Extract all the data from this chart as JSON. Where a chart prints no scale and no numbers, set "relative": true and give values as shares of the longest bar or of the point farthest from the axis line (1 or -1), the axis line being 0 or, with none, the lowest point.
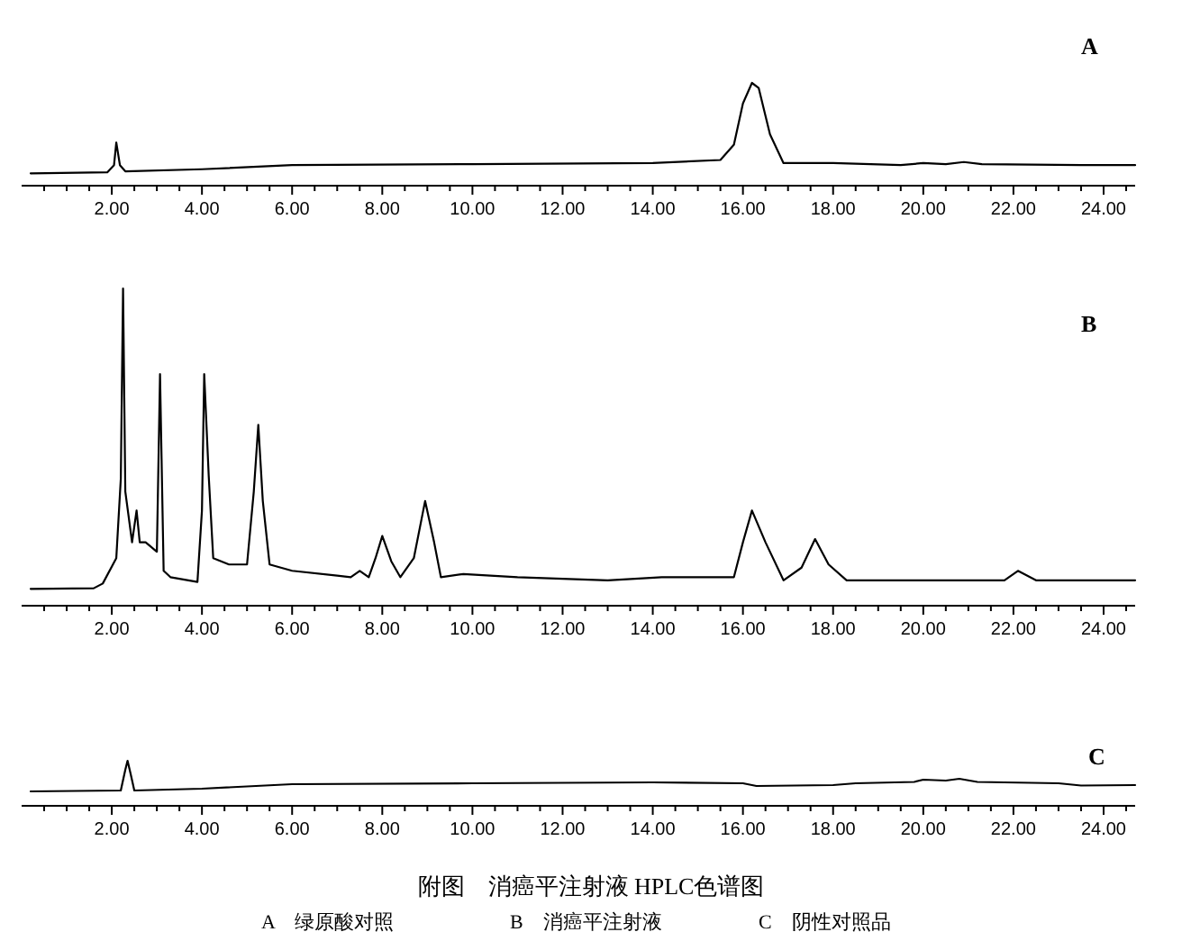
{
  "chart_data": [
    {
      "type": "line",
      "relative": true,
      "annotations": [
        "A"
      ],
      "xlim": [
        0,
        24.7
      ],
      "xticks": [
        {
          "value": 0.5,
          "label": null
        },
        {
          "value": 1,
          "label": null
        },
        {
          "value": 1.5,
          "label": null
        },
        {
          "value": 2,
          "label": "2.00"
        },
        {
          "value": 2.5,
          "label": null
        },
        {
          "value": 3,
          "label": null
        },
        {
          "value": 3.5,
          "label": null
        },
        {
          "value": 4,
          "label": "4.00"
        },
        {
          "value": 4.5,
          "label": null
        },
        {
          "value": 5,
          "label": null
        },
        {
          "value": 5.5,
          "label": null
        },
        {
          "value": 6,
          "label": "6.00"
        },
        {
          "value": 6.5,
          "label": null
        },
        {
          "value": 7,
          "label": null
        },
        {
          "value": 7.5,
          "label": null
        },
        {
          "value": 8,
          "label": "8.00"
        },
        {
          "value": 8.5,
          "label": null
        },
        {
          "value": 9,
          "label": null
        },
        {
          "value": 9.5,
          "label": null
        },
        {
          "value": 10,
          "label": "10.00"
        },
        {
          "value": 10.5,
          "label": null
        },
        {
          "value": 11,
          "label": null
        },
        {
          "value": 11.5,
          "label": null
        },
        {
          "value": 12,
          "label": "12.00"
        },
        {
          "value": 12.5,
          "label": null
        },
        {
          "value": 13,
          "label": null
        },
        {
          "value": 13.5,
          "label": null
        },
        {
          "value": 14,
          "label": "14.00"
        },
        {
          "value": 14.5,
          "label": null
        },
        {
          "value": 15,
          "label": null
        },
        {
          "value": 15.5,
          "label": null
        },
        {
          "value": 16,
          "label": "16.00"
        },
        {
          "value": 16.5,
          "label": null
        },
        {
          "value": 17,
          "label": null
        },
        {
          "value": 17.5,
          "label": null
        },
        {
          "value": 18,
          "label": "18.00"
        },
        {
          "value": 18.5,
          "label": null
        },
        {
          "value": 19,
          "label": null
        },
        {
          "value": 19.5,
          "label": null
        },
        {
          "value": 20,
          "label": "20.00"
        },
        {
          "value": 20.5,
          "label": null
        },
        {
          "value": 21,
          "label": null
        },
        {
          "value": 21.5,
          "label": null
        },
        {
          "value": 22,
          "label": "22.00"
        },
        {
          "value": 22.5,
          "label": null
        },
        {
          "value": 23,
          "label": null
        },
        {
          "value": 23.5,
          "label": null
        },
        {
          "value": 24,
          "label": "24.00"
        },
        {
          "value": 24.5,
          "label": null
        }
      ],
      "series": [
        {
          "color": "#000000",
          "x": [
            0.2,
            1.9,
            2.05,
            2.1,
            2.18,
            2.3,
            4,
            6,
            10,
            14,
            15.5,
            15.8,
            16.0,
            16.2,
            16.35,
            16.6,
            16.9,
            18,
            19.5,
            20,
            20.5,
            20.9,
            21.3,
            23.5,
            24.7
          ],
          "values": [
            0.12,
            0.13,
            0.2,
            0.42,
            0.2,
            0.14,
            0.16,
            0.2,
            0.21,
            0.22,
            0.25,
            0.4,
            0.8,
            1.0,
            0.95,
            0.5,
            0.22,
            0.22,
            0.2,
            0.22,
            0.21,
            0.23,
            0.21,
            0.2,
            0.2
          ]
        }
      ]
    },
    {
      "type": "line",
      "relative": true,
      "annotations": [
        "B"
      ],
      "xlim": [
        0,
        24.7
      ],
      "xticks": [
        {
          "value": 0.5,
          "label": null
        },
        {
          "value": 1,
          "label": null
        },
        {
          "value": 1.5,
          "label": null
        },
        {
          "value": 2,
          "label": "2.00"
        },
        {
          "value": 2.5,
          "label": null
        },
        {
          "value": 3,
          "label": null
        },
        {
          "value": 3.5,
          "label": null
        },
        {
          "value": 4,
          "label": "4.00"
        },
        {
          "value": 4.5,
          "label": null
        },
        {
          "value": 5,
          "label": null
        },
        {
          "value": 5.5,
          "label": null
        },
        {
          "value": 6,
          "label": "6.00"
        },
        {
          "value": 6.5,
          "label": null
        },
        {
          "value": 7,
          "label": null
        },
        {
          "value": 7.5,
          "label": null
        },
        {
          "value": 8,
          "label": "8.00"
        },
        {
          "value": 8.5,
          "label": null
        },
        {
          "value": 9,
          "label": null
        },
        {
          "value": 9.5,
          "label": null
        },
        {
          "value": 10,
          "label": "10.00"
        },
        {
          "value": 10.5,
          "label": null
        },
        {
          "value": 11,
          "label": null
        },
        {
          "value": 11.5,
          "label": null
        },
        {
          "value": 12,
          "label": "12.00"
        },
        {
          "value": 12.5,
          "label": null
        },
        {
          "value": 13,
          "label": null
        },
        {
          "value": 13.5,
          "label": null
        },
        {
          "value": 14,
          "label": "14.00"
        },
        {
          "value": 14.5,
          "label": null
        },
        {
          "value": 15,
          "label": null
        },
        {
          "value": 15.5,
          "label": null
        },
        {
          "value": 16,
          "label": "16.00"
        },
        {
          "value": 16.5,
          "label": null
        },
        {
          "value": 17,
          "label": null
        },
        {
          "value": 17.5,
          "label": null
        },
        {
          "value": 18,
          "label": "18.00"
        },
        {
          "value": 18.5,
          "label": null
        },
        {
          "value": 19,
          "label": null
        },
        {
          "value": 19.5,
          "label": null
        },
        {
          "value": 20,
          "label": "20.00"
        },
        {
          "value": 20.5,
          "label": null
        },
        {
          "value": 21,
          "label": null
        },
        {
          "value": 21.5,
          "label": null
        },
        {
          "value": 22,
          "label": "22.00"
        },
        {
          "value": 22.5,
          "label": null
        },
        {
          "value": 23,
          "label": null
        },
        {
          "value": 23.5,
          "label": null
        },
        {
          "value": 24,
          "label": "24.00"
        },
        {
          "value": 24.5,
          "label": null
        }
      ],
      "series": [
        {
          "color": "#000000",
          "x": [
            0.2,
            1.6,
            1.8,
            2.1,
            2.2,
            2.25,
            2.3,
            2.45,
            2.55,
            2.62,
            2.75,
            3.0,
            3.07,
            3.15,
            3.3,
            3.9,
            4.0,
            4.05,
            4.15,
            4.25,
            4.6,
            5.0,
            5.15,
            5.25,
            5.35,
            5.5,
            6.0,
            7.0,
            7.3,
            7.5,
            7.7,
            7.85,
            8.0,
            8.2,
            8.4,
            8.7,
            8.95,
            9.15,
            9.3,
            9.8,
            11,
            13,
            14.2,
            15.8,
            16.0,
            16.2,
            16.5,
            16.9,
            17.3,
            17.6,
            17.9,
            18.3,
            21.8,
            22.1,
            22.5,
            24.7
          ],
          "values": [
            0.053,
            0.055,
            0.07,
            0.15,
            0.4,
            1.0,
            0.36,
            0.2,
            0.3,
            0.2,
            0.2,
            0.17,
            0.73,
            0.11,
            0.09,
            0.075,
            0.3,
            0.73,
            0.41,
            0.15,
            0.13,
            0.13,
            0.36,
            0.57,
            0.33,
            0.13,
            0.11,
            0.095,
            0.09,
            0.11,
            0.09,
            0.15,
            0.22,
            0.14,
            0.09,
            0.15,
            0.33,
            0.2,
            0.09,
            0.1,
            0.09,
            0.08,
            0.09,
            0.09,
            0.2,
            0.3,
            0.2,
            0.08,
            0.12,
            0.21,
            0.13,
            0.08,
            0.08,
            0.11,
            0.08,
            0.08
          ]
        }
      ]
    },
    {
      "type": "line",
      "relative": true,
      "annotations": [
        "C",
        "附图　消癌平注射液 HPLC色谱图",
        "A　绿原酸对照",
        "B　消癌平注射液",
        "C　阴性对照品"
      ],
      "xlim": [
        0,
        24.7
      ],
      "xticks": [
        {
          "value": 0.5,
          "label": null
        },
        {
          "value": 1,
          "label": null
        },
        {
          "value": 1.5,
          "label": null
        },
        {
          "value": 2,
          "label": "2.00"
        },
        {
          "value": 2.5,
          "label": null
        },
        {
          "value": 3,
          "label": null
        },
        {
          "value": 3.5,
          "label": null
        },
        {
          "value": 4,
          "label": "4.00"
        },
        {
          "value": 4.5,
          "label": null
        },
        {
          "value": 5,
          "label": null
        },
        {
          "value": 5.5,
          "label": null
        },
        {
          "value": 6,
          "label": "6.00"
        },
        {
          "value": 6.5,
          "label": null
        },
        {
          "value": 7,
          "label": null
        },
        {
          "value": 7.5,
          "label": null
        },
        {
          "value": 8,
          "label": "8.00"
        },
        {
          "value": 8.5,
          "label": null
        },
        {
          "value": 9,
          "label": null
        },
        {
          "value": 9.5,
          "label": null
        },
        {
          "value": 10,
          "label": "10.00"
        },
        {
          "value": 10.5,
          "label": null
        },
        {
          "value": 11,
          "label": null
        },
        {
          "value": 11.5,
          "label": null
        },
        {
          "value": 12,
          "label": "12.00"
        },
        {
          "value": 12.5,
          "label": null
        },
        {
          "value": 13,
          "label": null
        },
        {
          "value": 13.5,
          "label": null
        },
        {
          "value": 14,
          "label": "14.00"
        },
        {
          "value": 14.5,
          "label": null
        },
        {
          "value": 15,
          "label": null
        },
        {
          "value": 15.5,
          "label": null
        },
        {
          "value": 16,
          "label": "16.00"
        },
        {
          "value": 16.5,
          "label": null
        },
        {
          "value": 17,
          "label": null
        },
        {
          "value": 17.5,
          "label": null
        },
        {
          "value": 18,
          "label": "18.00"
        },
        {
          "value": 18.5,
          "label": null
        },
        {
          "value": 19,
          "label": null
        },
        {
          "value": 19.5,
          "label": null
        },
        {
          "value": 20,
          "label": "20.00"
        },
        {
          "value": 20.5,
          "label": null
        },
        {
          "value": 21,
          "label": null
        },
        {
          "value": 21.5,
          "label": null
        },
        {
          "value": 22,
          "label": "22.00"
        },
        {
          "value": 22.5,
          "label": null
        },
        {
          "value": 23,
          "label": null
        },
        {
          "value": 23.5,
          "label": null
        },
        {
          "value": 24,
          "label": "24.00"
        },
        {
          "value": 24.5,
          "label": null
        }
      ],
      "series": [
        {
          "color": "#000000",
          "x": [
            0.2,
            2.2,
            2.3,
            2.35,
            2.42,
            2.5,
            4,
            6,
            10,
            14,
            16,
            16.3,
            18,
            18.5,
            19.8,
            20,
            20.5,
            20.8,
            21.2,
            23,
            23.5,
            24.7
          ],
          "values": [
            0.32,
            0.34,
            0.8,
            1.0,
            0.7,
            0.34,
            0.38,
            0.48,
            0.5,
            0.52,
            0.5,
            0.44,
            0.46,
            0.5,
            0.53,
            0.58,
            0.56,
            0.6,
            0.53,
            0.5,
            0.45,
            0.46
          ]
        }
      ]
    }
  ]
}
